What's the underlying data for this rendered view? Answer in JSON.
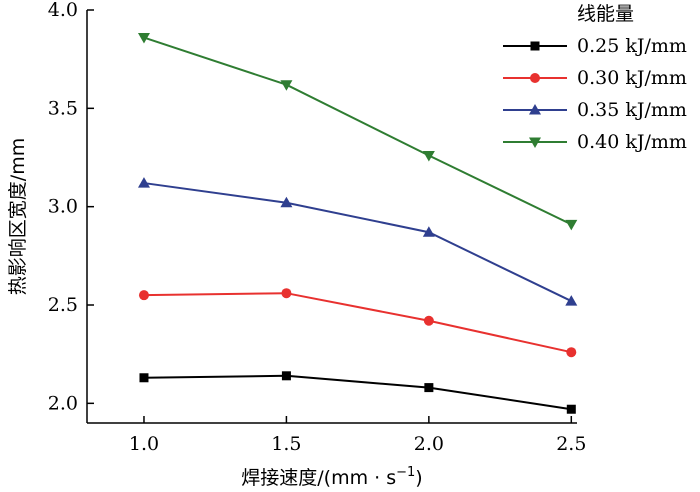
{
  "chart_data": {
    "type": "line",
    "title": "",
    "xlabel": "焊接速度/(mm · s",
    "xlabel_sup": "−1",
    "xlabel_close": ")",
    "ylabel": "热影响区宽度/mm",
    "x": [
      1.0,
      1.5,
      2.0,
      2.5
    ],
    "xlim": [
      0.8,
      2.52
    ],
    "ylim": [
      1.9,
      4.0
    ],
    "xticks": [
      "1.0",
      "1.5",
      "2.0",
      "2.5"
    ],
    "yticks": [
      "2.0",
      "2.5",
      "3.0",
      "3.5",
      "4.0"
    ],
    "legend_title": "线能量",
    "legend_position": "top-right",
    "grid": false,
    "series": [
      {
        "name": "0.25 kJ/mm",
        "color": "#000000",
        "marker": "square",
        "values": [
          2.13,
          2.14,
          2.08,
          1.97
        ]
      },
      {
        "name": "0.30 kJ/mm",
        "color": "#e8312f",
        "marker": "circle",
        "values": [
          2.55,
          2.56,
          2.42,
          2.26
        ]
      },
      {
        "name": "0.35 kJ/mm",
        "color": "#2f3f8f",
        "marker": "triangle-up",
        "values": [
          3.12,
          3.02,
          2.87,
          2.52
        ]
      },
      {
        "name": "0.40 kJ/mm",
        "color": "#2f7d32",
        "marker": "triangle-down",
        "values": [
          3.86,
          3.62,
          3.26,
          2.91
        ]
      }
    ]
  }
}
